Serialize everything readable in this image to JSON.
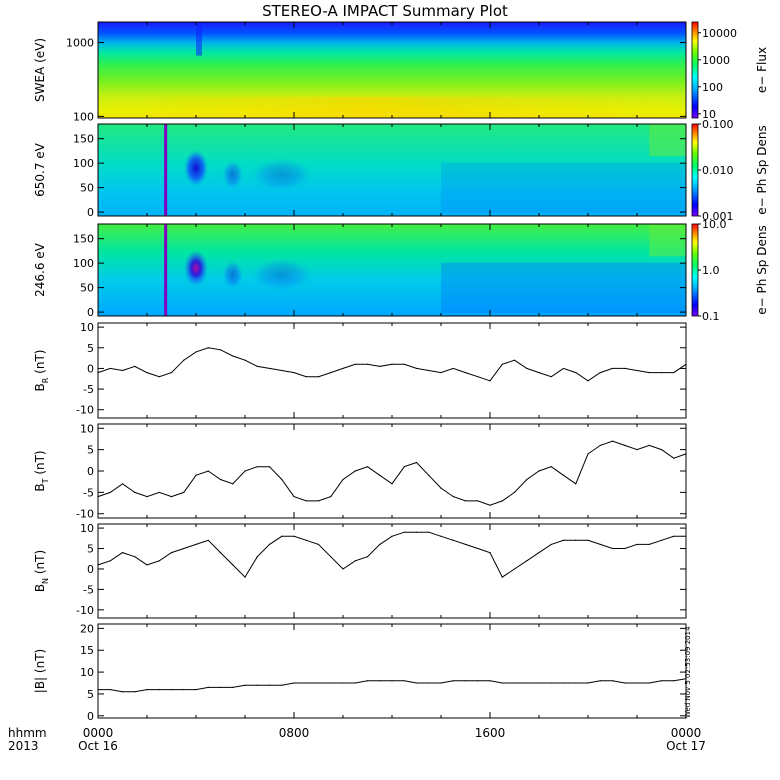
{
  "title": "STEREO-A IMPACT Summary Plot",
  "stamp": "Wed Nov 5 02:53:09 2014",
  "time_axis": {
    "row1_label": "hhmm",
    "row2_label": "2013",
    "ticks": [
      {
        "hours": 0,
        "top": "0000",
        "bottom": "Oct 16"
      },
      {
        "hours": 8,
        "top": "0800",
        "bottom": ""
      },
      {
        "hours": 16,
        "top": "1600",
        "bottom": ""
      },
      {
        "hours": 24,
        "top": "0000",
        "bottom": "Oct 17"
      }
    ]
  },
  "chart_data": [
    {
      "type": "heatmap",
      "name": "swea",
      "ylabel": "SWEA (eV)",
      "yscale": "log",
      "ylim": [
        95,
        1900
      ],
      "yticks": [
        {
          "v": 100,
          "label": "100"
        },
        {
          "v": 1000,
          "label": "1000"
        }
      ],
      "colorbar": {
        "label": "e− Flux",
        "scale": "log",
        "range": [
          7,
          25000
        ],
        "ticks": [
          {
            "v": 10,
            "label": "10"
          },
          {
            "v": 100,
            "label": "100"
          },
          {
            "v": 1000,
            "label": "1000"
          },
          {
            "v": 10000,
            "label": "10000"
          }
        ]
      }
    },
    {
      "type": "heatmap",
      "name": "pad_650",
      "ylabel": "650.7 eV",
      "yscale": "linear",
      "ylim": [
        -8,
        180
      ],
      "yticks": [
        {
          "v": 0,
          "label": "0"
        },
        {
          "v": 50,
          "label": "50"
        },
        {
          "v": 100,
          "label": "100"
        },
        {
          "v": 150,
          "label": "150"
        }
      ],
      "colorbar": {
        "label": "e− Ph Sp Dens",
        "scale": "log",
        "range": [
          0.001,
          0.1
        ],
        "ticks": [
          {
            "v": 0.001,
            "label": "0.001"
          },
          {
            "v": 0.01,
            "label": "0.010"
          },
          {
            "v": 0.1,
            "label": "0.100"
          }
        ]
      }
    },
    {
      "type": "heatmap",
      "name": "pad_246",
      "ylabel": "246.6 eV",
      "yscale": "linear",
      "ylim": [
        -8,
        180
      ],
      "yticks": [
        {
          "v": 0,
          "label": "0"
        },
        {
          "v": 50,
          "label": "50"
        },
        {
          "v": 100,
          "label": "100"
        },
        {
          "v": 150,
          "label": "150"
        }
      ],
      "colorbar": {
        "label": "e− Ph Sp Dens",
        "scale": "log",
        "range": [
          0.1,
          10
        ],
        "ticks": [
          {
            "v": 0.1,
            "label": "0.1"
          },
          {
            "v": 1,
            "label": "1.0"
          },
          {
            "v": 10,
            "label": "10.0"
          }
        ]
      }
    },
    {
      "type": "line",
      "name": "br",
      "ylabel": "B_R (nT)",
      "ylim": [
        -12,
        11
      ],
      "yticks": [
        -10,
        -5,
        0,
        5,
        10
      ],
      "x": [
        0,
        0.5,
        1,
        1.5,
        2,
        2.5,
        3,
        3.5,
        4,
        4.5,
        5,
        5.5,
        6,
        6.5,
        7,
        7.5,
        8,
        8.5,
        9,
        9.5,
        10,
        10.5,
        11,
        11.5,
        12,
        12.5,
        13,
        13.5,
        14,
        14.5,
        15,
        15.5,
        16,
        16.5,
        17,
        17.5,
        18,
        18.5,
        19,
        19.5,
        20,
        20.5,
        21,
        21.5,
        22,
        22.5,
        23,
        23.5,
        24
      ],
      "y": [
        -1,
        0,
        -0.5,
        0.5,
        -1,
        -2,
        -1,
        2,
        4,
        5,
        4.5,
        3,
        2,
        0.5,
        0,
        -0.5,
        -1,
        -2,
        -2,
        -1,
        0,
        1,
        1,
        0.5,
        1,
        1,
        0,
        -0.5,
        -1,
        0,
        -1,
        -2,
        -3,
        1,
        2,
        0,
        -1,
        -2,
        0,
        -1,
        -3,
        -1,
        0,
        0,
        -0.5,
        -1,
        -1,
        -1,
        1
      ]
    },
    {
      "type": "line",
      "name": "bt",
      "ylabel": "B_T (nT)",
      "ylim": [
        -11,
        11
      ],
      "yticks": [
        -10,
        -5,
        0,
        5,
        10
      ],
      "x": [
        0,
        0.5,
        1,
        1.5,
        2,
        2.5,
        3,
        3.5,
        4,
        4.5,
        5,
        5.5,
        6,
        6.5,
        7,
        7.5,
        8,
        8.5,
        9,
        9.5,
        10,
        10.5,
        11,
        11.5,
        12,
        12.5,
        13,
        13.5,
        14,
        14.5,
        15,
        15.5,
        16,
        16.5,
        17,
        17.5,
        18,
        18.5,
        19,
        19.5,
        20,
        20.5,
        21,
        21.5,
        22,
        22.5,
        23,
        23.5,
        24
      ],
      "y": [
        -6,
        -5,
        -3,
        -5,
        -6,
        -5,
        -6,
        -5,
        -1,
        0,
        -2,
        -3,
        0,
        1,
        1,
        -2,
        -6,
        -7,
        -7,
        -6,
        -2,
        0,
        1,
        -1,
        -3,
        1,
        2,
        -1,
        -4,
        -6,
        -7,
        -7,
        -8,
        -7,
        -5,
        -2,
        0,
        1,
        -1,
        -3,
        4,
        6,
        7,
        6,
        5,
        6,
        5,
        3,
        4
      ]
    },
    {
      "type": "line",
      "name": "bn",
      "ylabel": "B_N (nT)",
      "ylim": [
        -12,
        11
      ],
      "yticks": [
        -10,
        -5,
        0,
        5,
        10
      ],
      "x": [
        0,
        0.5,
        1,
        1.5,
        2,
        2.5,
        3,
        3.5,
        4,
        4.5,
        5,
        5.5,
        6,
        6.5,
        7,
        7.5,
        8,
        8.5,
        9,
        9.5,
        10,
        10.5,
        11,
        11.5,
        12,
        12.5,
        13,
        13.5,
        14,
        14.5,
        15,
        15.5,
        16,
        16.5,
        17,
        17.5,
        18,
        18.5,
        19,
        19.5,
        20,
        20.5,
        21,
        21.5,
        22,
        22.5,
        23,
        23.5,
        24
      ],
      "y": [
        1,
        2,
        4,
        3,
        1,
        2,
        4,
        5,
        6,
        7,
        4,
        1,
        -2,
        3,
        6,
        8,
        8,
        7,
        6,
        3,
        0,
        2,
        3,
        6,
        8,
        9,
        9,
        9,
        8,
        7,
        6,
        5,
        4,
        -2,
        0,
        2,
        4,
        6,
        7,
        7,
        7,
        6,
        5,
        5,
        6,
        6,
        7,
        8,
        8
      ]
    },
    {
      "type": "line",
      "name": "bmag",
      "ylabel": "|B| (nT)",
      "ylim": [
        -0.5,
        21
      ],
      "yticks": [
        0,
        5,
        10,
        15,
        20
      ],
      "x": [
        0,
        0.5,
        1,
        1.5,
        2,
        2.5,
        3,
        3.5,
        4,
        4.5,
        5,
        5.5,
        6,
        6.5,
        7,
        7.5,
        8,
        8.5,
        9,
        9.5,
        10,
        10.5,
        11,
        11.5,
        12,
        12.5,
        13,
        13.5,
        14,
        14.5,
        15,
        15.5,
        16,
        16.5,
        17,
        17.5,
        18,
        18.5,
        19,
        19.5,
        20,
        20.5,
        21,
        21.5,
        22,
        22.5,
        23,
        23.5,
        24
      ],
      "y": [
        6,
        6,
        5.5,
        5.5,
        6,
        6,
        6,
        6,
        6,
        6.5,
        6.5,
        6.5,
        7,
        7,
        7,
        7,
        7.5,
        7.5,
        7.5,
        7.5,
        7.5,
        7.5,
        8,
        8,
        8,
        8,
        7.5,
        7.5,
        7.5,
        8,
        8,
        8,
        8,
        7.5,
        7.5,
        7.5,
        7.5,
        7.5,
        7.5,
        7.5,
        7.5,
        8,
        8,
        7.5,
        7.5,
        7.5,
        8,
        8,
        8.5
      ]
    }
  ]
}
